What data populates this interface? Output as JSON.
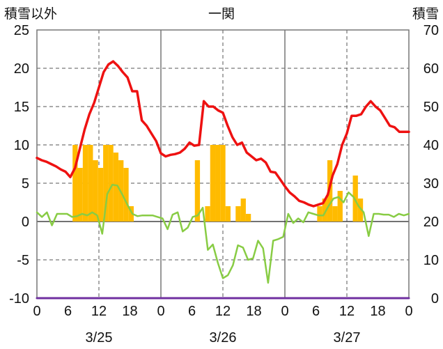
{
  "chart_data": {
    "type": "line",
    "title": "一関",
    "y_left_label": "積雪以外",
    "y_right_label": "積雪",
    "ylim_left": [
      -10,
      25
    ],
    "ylim_right": [
      0,
      70
    ],
    "y_left_ticks": [
      "25",
      "20",
      "15",
      "10",
      "5",
      "0",
      "-5",
      "-10"
    ],
    "y_right_ticks": [
      "70",
      "60",
      "50",
      "40",
      "30",
      "20",
      "10",
      "0"
    ],
    "x_tick_labels": [
      "0",
      "6",
      "12",
      "18",
      "0",
      "6",
      "12",
      "18",
      "0",
      "6",
      "12",
      "18",
      "0"
    ],
    "date_labels": [
      "3/25",
      "3/26",
      "3/27"
    ],
    "grid": true,
    "colors": {
      "temperature": "#ee1111",
      "secondary_line": "#88cc44",
      "bars": "#ffbb00",
      "snow_depth": "#7030a0",
      "grid": "#555555"
    },
    "series": [
      {
        "kind": "line",
        "color": "#ee1111",
        "values": [
          8.3,
          8.0,
          7.8,
          7.5,
          7.2,
          6.8,
          6.5,
          5.8,
          7.0,
          9.5,
          12.0,
          14.0,
          15.5,
          17.5,
          19.5,
          20.5,
          20.9,
          20.3,
          19.5,
          18.8,
          17.0,
          17.0,
          13.2,
          12.5,
          11.5,
          10.5,
          8.9,
          8.5,
          8.7,
          8.8,
          9.0,
          9.5,
          10.3,
          9.9,
          10.0,
          15.7,
          15.0,
          15.0,
          14.5,
          14.2,
          12.5,
          11.0,
          10.0,
          10.3,
          9.0,
          8.5,
          8.0,
          8.2,
          7.7,
          6.5,
          6.4,
          5.5,
          4.6,
          3.8,
          3.3,
          2.7,
          2.5,
          2.2,
          2.0,
          2.2,
          2.4,
          3.5,
          6.0,
          7.5,
          10.0,
          11.5,
          13.8,
          13.8,
          14.0,
          15.0,
          15.7,
          15.0,
          14.5,
          13.5,
          12.5,
          12.3,
          11.7,
          11.7,
          11.7
        ]
      },
      {
        "kind": "line",
        "color": "#88cc44",
        "values": [
          1.2,
          0.6,
          1.2,
          -0.5,
          1.0,
          1.0,
          1.0,
          0.6,
          0.7,
          1.0,
          0.8,
          1.2,
          0.8,
          -1.6,
          3.6,
          4.8,
          4.7,
          3.5,
          2.2,
          1.0,
          0.7,
          0.8,
          0.8,
          0.8,
          0.6,
          0.4,
          -1.0,
          0.9,
          1.2,
          -1.3,
          -0.8,
          0.6,
          0.8,
          1.8,
          -3.7,
          -3.0,
          -5.4,
          -7.4,
          -7.0,
          -5.7,
          -3.1,
          -3.4,
          -5.0,
          -4.8,
          -2.5,
          -3.5,
          -8.0,
          -2.5,
          -2.3,
          -2.0,
          1.0,
          -0.2,
          0.4,
          -0.1,
          1.2,
          1.0,
          0.8,
          0.8,
          2.0,
          3.0,
          3.2,
          2.5,
          3.8,
          3.2,
          2.0,
          1.2,
          -1.9,
          1.0,
          1.0,
          0.9,
          0.9,
          0.6,
          1.0,
          0.8,
          1.0
        ]
      },
      {
        "kind": "bar",
        "color": "#ffbb00",
        "values": [
          0,
          0,
          0,
          0,
          0,
          0,
          0,
          10,
          7,
          10,
          10,
          8,
          7,
          10,
          10,
          9,
          8,
          7,
          2,
          0,
          0,
          0,
          0,
          0,
          0,
          0,
          0,
          0,
          0,
          0,
          0,
          8,
          0,
          2,
          10,
          10,
          10,
          2,
          0,
          2,
          3,
          1,
          0,
          0,
          0,
          0,
          0,
          0,
          0,
          0,
          0,
          0,
          0,
          0,
          0,
          2,
          3,
          8,
          2,
          4,
          0,
          0,
          6,
          3,
          0,
          0,
          0,
          0,
          0,
          0,
          0,
          0,
          0
        ]
      },
      {
        "kind": "line",
        "color": "#7030a0",
        "axis": "right",
        "values": [
          0,
          0
        ]
      }
    ]
  }
}
